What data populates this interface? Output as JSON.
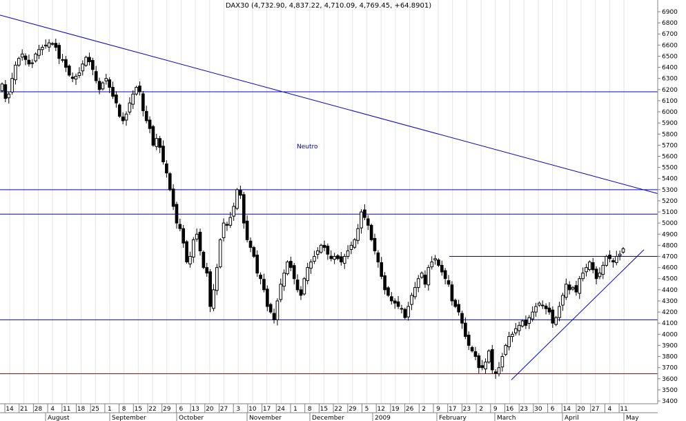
{
  "chart_data": {
    "type": "candlestick",
    "title": "DAX30 (4,732.90, 4,837.22, 4,710.09, 4,769.45, +64.8901)",
    "ylim": [
      3400,
      6950
    ],
    "yticks": [
      3400,
      3500,
      3600,
      3700,
      3800,
      3900,
      4000,
      4100,
      4200,
      4300,
      4400,
      4500,
      4600,
      4700,
      4800,
      4900,
      5000,
      5100,
      5200,
      5300,
      5400,
      5500,
      5600,
      5700,
      5800,
      5900,
      6000,
      6100,
      6200,
      6300,
      6400,
      6500,
      6600,
      6700,
      6800,
      6900
    ],
    "x_tick_labels": [
      "14",
      "21",
      "28",
      "4",
      "11",
      "18",
      "25",
      "1",
      "8",
      "15",
      "22",
      "29",
      "6",
      "13",
      "20",
      "27",
      "3",
      "10",
      "17",
      "24",
      "1",
      "8",
      "15",
      "22",
      "29",
      "5",
      "12",
      "19",
      "26",
      "2",
      "9",
      "17",
      "23",
      "2",
      "9",
      "16",
      "23",
      "30",
      "6",
      "14",
      "20",
      "27",
      "4",
      "11"
    ],
    "month_labels": [
      "August",
      "September",
      "October",
      "November",
      "December",
      "2009",
      "February",
      "March",
      "April",
      "May"
    ],
    "horizontal_levels": [
      {
        "value": 6180,
        "color": "#0000cc"
      },
      {
        "value": 5300,
        "color": "#0000cc"
      },
      {
        "value": 5080,
        "color": "#0000cc"
      },
      {
        "value": 4130,
        "color": "#0000cc"
      },
      {
        "value": 3645,
        "color": "#cc0000"
      }
    ],
    "short_level": {
      "value": 4700,
      "color": "#0000cc"
    },
    "trendlines": [
      {
        "color": "#0000cc",
        "from": 6870,
        "to": 5265
      },
      {
        "color": "#0000cc",
        "from": 3590,
        "to": 4760
      }
    ],
    "annotation": "Neutro",
    "closes": [
      6250,
      6120,
      6160,
      6300,
      6420,
      6480,
      6520,
      6470,
      6430,
      6440,
      6520,
      6560,
      6580,
      6600,
      6620,
      6610,
      6580,
      6480,
      6470,
      6400,
      6330,
      6300,
      6320,
      6350,
      6430,
      6490,
      6450,
      6380,
      6280,
      6200,
      6260,
      6300,
      6220,
      6140,
      6080,
      5960,
      5920,
      5980,
      6080,
      6160,
      6220,
      6180,
      6010,
      5920,
      5850,
      5700,
      5760,
      5680,
      5550,
      5450,
      5300,
      5150,
      5000,
      4950,
      4820,
      4650,
      4700,
      4850,
      4900,
      4750,
      4600,
      4550,
      4250,
      4400,
      4600,
      4850,
      5000,
      4980,
      5050,
      5150,
      5300,
      5250,
      5000,
      4850,
      4780,
      4700,
      4550,
      4500,
      4400,
      4250,
      4200,
      4130,
      4300,
      4450,
      4550,
      4650,
      4600,
      4500,
      4400,
      4350,
      4500,
      4600,
      4650,
      4700,
      4750,
      4800,
      4780,
      4720,
      4680,
      4700,
      4680,
      4650,
      4700,
      4750,
      4800,
      4850,
      4950,
      5100,
      5050,
      4980,
      4850,
      4750,
      4650,
      4520,
      4400,
      4350,
      4300,
      4280,
      4250,
      4230,
      4150,
      4250,
      4350,
      4420,
      4500,
      4550,
      4450,
      4600,
      4650,
      4680,
      4620,
      4560,
      4500,
      4450,
      4300,
      4250,
      4200,
      4100,
      3980,
      3900,
      3850,
      3800,
      3700,
      3700,
      3750,
      3850,
      3680,
      3650,
      3700,
      3800,
      3900,
      3980,
      4000,
      4050,
      4080,
      4120,
      4080,
      4150,
      4200,
      4250,
      4280,
      4260,
      4230,
      4200,
      4100,
      4150,
      4250,
      4350,
      4450,
      4400,
      4420,
      4380,
      4500,
      4550,
      4600,
      4650,
      4580,
      4500,
      4550,
      4620,
      4700,
      4680,
      4650,
      4700,
      4720,
      4769
    ]
  }
}
